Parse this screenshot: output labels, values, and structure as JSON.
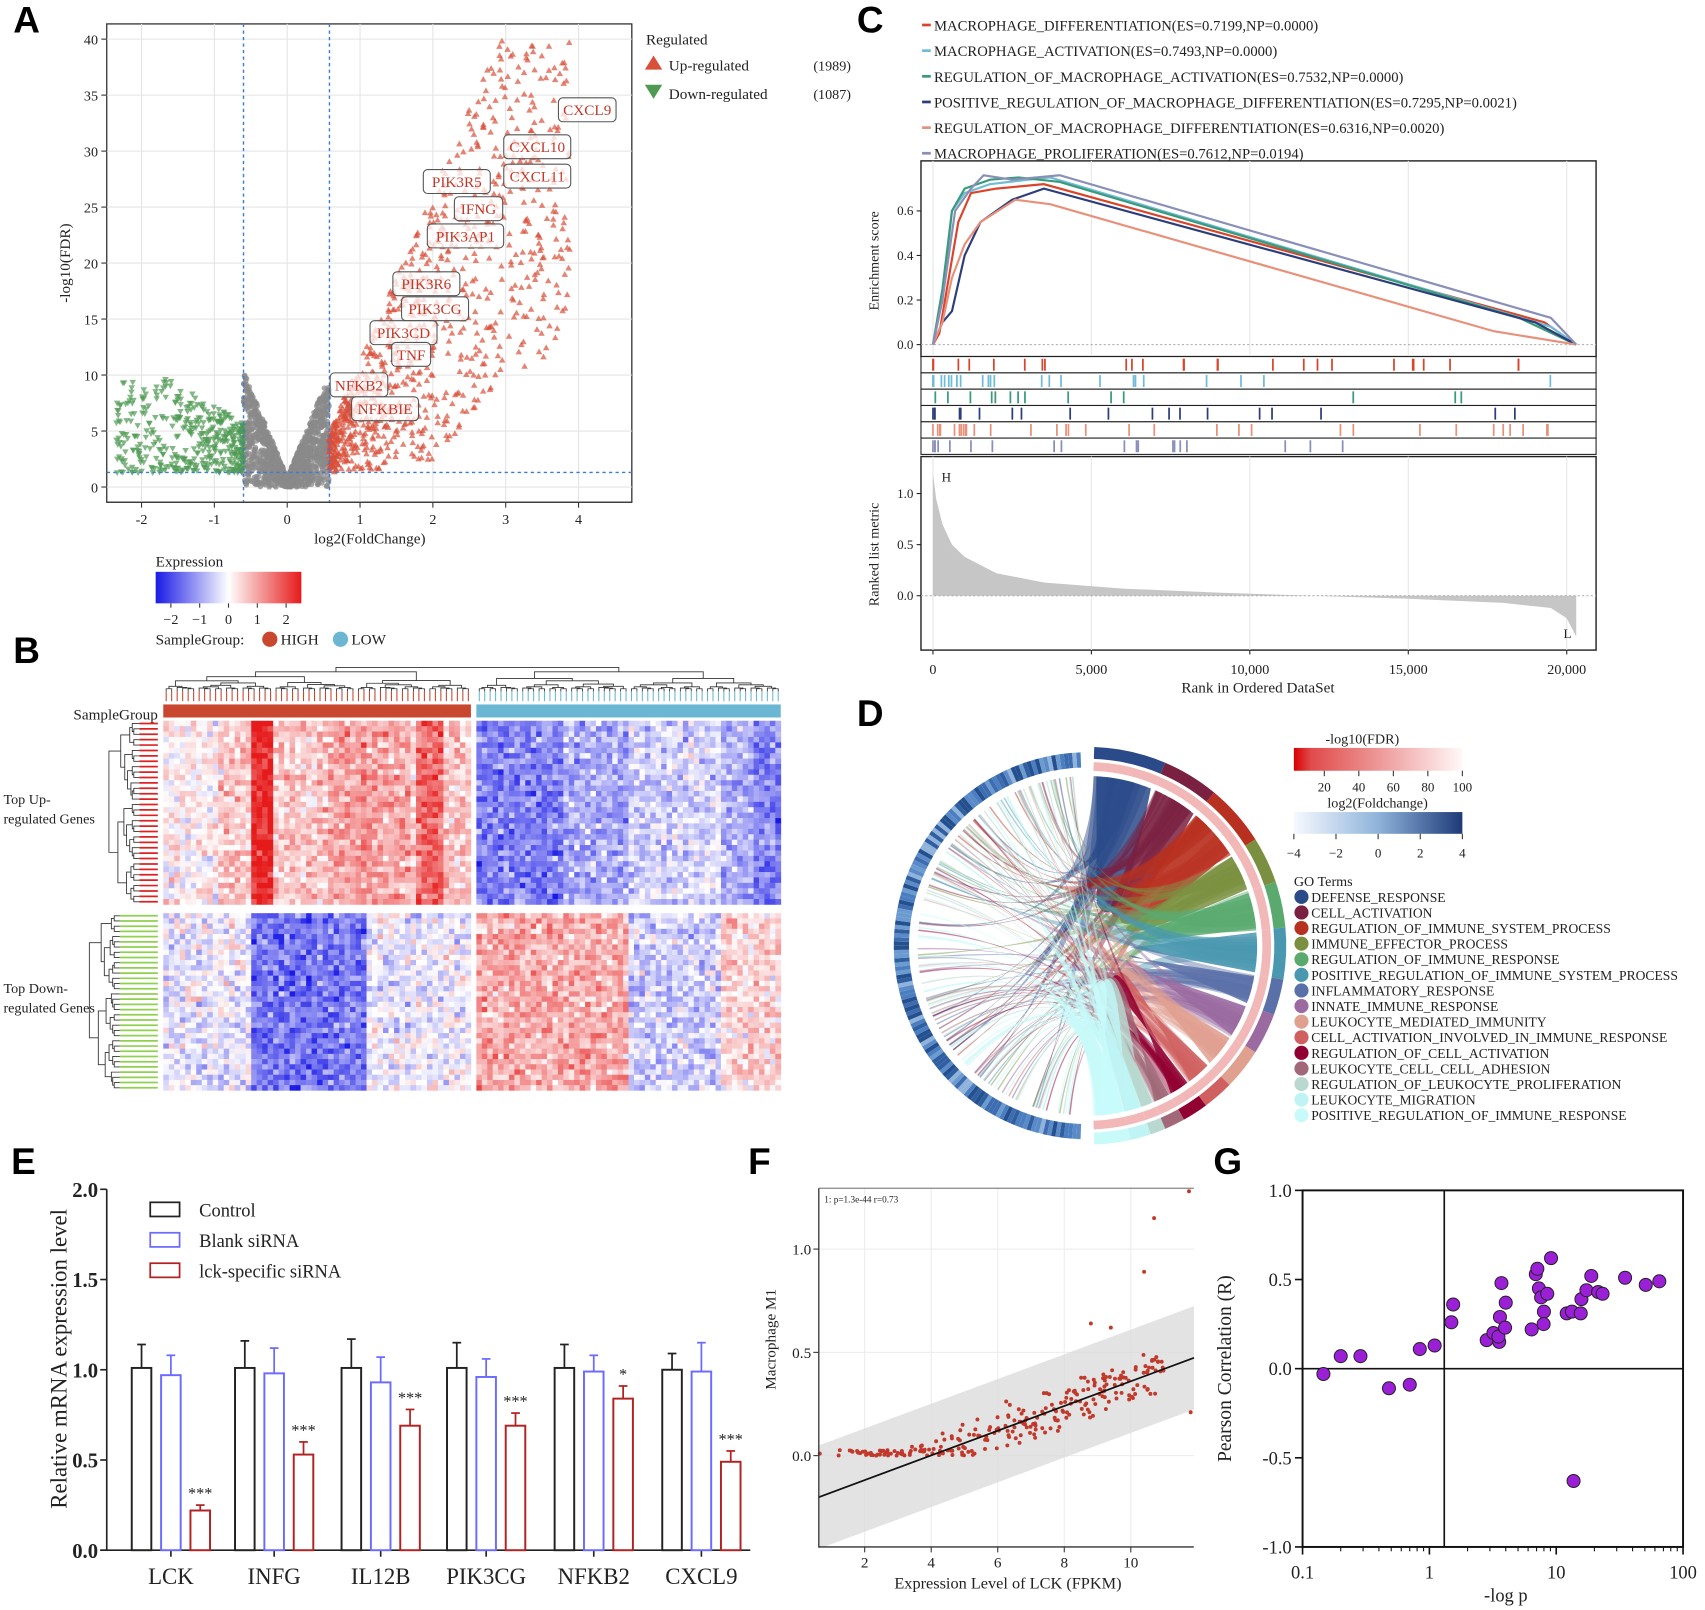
{
  "panel_labels": {
    "A": "A",
    "B": "B",
    "C": "C",
    "D": "D",
    "E": "E",
    "F": "F",
    "G": "G"
  },
  "chart_data": [
    {
      "panel": "A",
      "type": "scatter",
      "title": "",
      "xlabel": "log2(FoldChange)",
      "ylabel": "-log10(FDR)",
      "xticks": [
        "-2",
        "-1",
        "0",
        "1",
        "2",
        "3",
        "4"
      ],
      "yticks": [
        "0",
        "5",
        "10",
        "15",
        "20",
        "25",
        "30",
        "35",
        "40"
      ],
      "xlim": [
        -2.5,
        4.7
      ],
      "ylim": [
        -1,
        41
      ],
      "thresholds": {
        "log2fc": [
          -0.6,
          0.58
        ],
        "neg_log10_fdr": 1.3
      },
      "legend": {
        "title": "Regulated",
        "items": [
          {
            "label": "Up-regulated",
            "count": "(1989)",
            "color": "#d9503a"
          },
          {
            "label": "Down-regulated",
            "count": "(1087)",
            "color": "#4f9a52"
          }
        ]
      },
      "gene_labels": [
        "CXCL9",
        "CXCL10",
        "CXCL11",
        "PIK3R5",
        "IFNG",
        "PIK3AP1",
        "PIK3R6",
        "PIK3CG",
        "PIK3CD",
        "TNF",
        "NFKB2",
        "NFKBIE"
      ]
    },
    {
      "panel": "B",
      "type": "heatmap",
      "legend_title": "Expression",
      "color_range": [
        -2,
        2
      ],
      "color_ticks": [
        "−2",
        "−1",
        "0",
        "1",
        "2"
      ],
      "sample_group_legend": "SampleGroup:",
      "annotation_label": "SampleGroup",
      "groups": [
        {
          "label": "HIGH",
          "color": "#c9462f"
        },
        {
          "label": "LOW",
          "color": "#6bb7d3"
        }
      ],
      "row_groups": [
        {
          "line1": "Top Up-",
          "line2": "regulated Genes",
          "color": "#e02020"
        },
        {
          "line1": "Top Down-",
          "line2": "regulated Genes",
          "color": "#8fd14f"
        }
      ],
      "colors": {
        "low": "#1a1ae6",
        "mid": "#ffffff",
        "high": "#e61a1a"
      }
    },
    {
      "panel": "C",
      "type": "line",
      "xlabel": "Rank in Ordered DataSet",
      "ylabel_es": "Enrichment score",
      "ylabel_metric": "Ranked list metric",
      "xticks": [
        {
          "v": 0,
          "label": "0"
        },
        {
          "v": 5000,
          "label": "5,000"
        },
        {
          "v": 10000,
          "label": "10,000"
        },
        {
          "v": 15000,
          "label": "15,000"
        },
        {
          "v": 20000,
          "label": "20,000"
        }
      ],
      "es_ticks": [
        {
          "v": 0,
          "label": "0.0"
        },
        {
          "v": 0.2,
          "label": "0.2"
        },
        {
          "v": 0.4,
          "label": "0.4"
        },
        {
          "v": 0.6,
          "label": "0.6"
        }
      ],
      "metric_ticks": [
        {
          "v": 0,
          "label": "0.0"
        },
        {
          "v": 0.5,
          "label": "0.5"
        },
        {
          "v": 1.0,
          "label": "1.0"
        }
      ],
      "high_label": "H",
      "low_label": "L",
      "series": [
        {
          "label": "MACROPHAGE_DIFFERENTIATION(ES=0.7199,NP=0.0000)",
          "color": "#d9442b",
          "points": [
            [
              0,
              0
            ],
            [
              200,
              0.05
            ],
            [
              500,
              0.3
            ],
            [
              800,
              0.55
            ],
            [
              1200,
              0.68
            ],
            [
              2000,
              0.7
            ],
            [
              3500,
              0.72
            ],
            [
              19300,
              0.1
            ],
            [
              20300,
              0
            ]
          ]
        },
        {
          "label": "MACROPHAGE_ACTIVATION(ES=0.7493,NP=0.0000)",
          "color": "#6fbcd8",
          "points": [
            [
              0,
              0
            ],
            [
              300,
              0.2
            ],
            [
              600,
              0.6
            ],
            [
              1000,
              0.68
            ],
            [
              1800,
              0.72
            ],
            [
              3000,
              0.74
            ],
            [
              3700,
              0.75
            ],
            [
              19500,
              0.08
            ],
            [
              20300,
              0
            ]
          ]
        },
        {
          "label": "REGULATION_OF_MACROPHAGE_ACTIVATION(ES=0.7532,NP=0.0000)",
          "color": "#3a9a7a",
          "points": [
            [
              0,
              0
            ],
            [
              300,
              0.25
            ],
            [
              600,
              0.6
            ],
            [
              1000,
              0.7
            ],
            [
              1800,
              0.74
            ],
            [
              2700,
              0.75
            ],
            [
              4000,
              0.73
            ],
            [
              18500,
              0.12
            ],
            [
              20300,
              0
            ]
          ]
        },
        {
          "label": "POSITIVE_REGULATION_OF_MACROPHAGE_DIFFERENTIATION(ES=0.7295,NP=0.0021)",
          "color": "#2c3e7a",
          "points": [
            [
              0,
              0
            ],
            [
              300,
              0.1
            ],
            [
              600,
              0.15
            ],
            [
              1000,
              0.4
            ],
            [
              1500,
              0.55
            ],
            [
              2500,
              0.65
            ],
            [
              3500,
              0.7
            ],
            [
              19000,
              0.1
            ],
            [
              20300,
              0
            ]
          ]
        },
        {
          "label": "REGULATION_OF_MACROPHAGE_DIFFERENTIATION(ES=0.6316,NP=0.0020)",
          "color": "#e8907a",
          "points": [
            [
              0,
              0
            ],
            [
              300,
              0.1
            ],
            [
              600,
              0.3
            ],
            [
              1000,
              0.45
            ],
            [
              1500,
              0.55
            ],
            [
              2600,
              0.65
            ],
            [
              3700,
              0.63
            ],
            [
              17700,
              0.06
            ],
            [
              20300,
              0
            ]
          ]
        },
        {
          "label": "MACROPHAGE_PROLIFERATION(ES=0.7612,NP=0.0194)",
          "color": "#8a8fb8",
          "points": [
            [
              0,
              0
            ],
            [
              300,
              0.2
            ],
            [
              700,
              0.6
            ],
            [
              1200,
              0.7
            ],
            [
              1600,
              0.76
            ],
            [
              2500,
              0.74
            ],
            [
              4000,
              0.76
            ],
            [
              19500,
              0.12
            ],
            [
              20300,
              0
            ]
          ]
        }
      ],
      "metric": [
        [
          0,
          1.2
        ],
        [
          100,
          0.95
        ],
        [
          300,
          0.7
        ],
        [
          600,
          0.5
        ],
        [
          1000,
          0.38
        ],
        [
          2000,
          0.22
        ],
        [
          3500,
          0.13
        ],
        [
          6000,
          0.07
        ],
        [
          9000,
          0.03
        ],
        [
          12000,
          0.0
        ],
        [
          15000,
          -0.03
        ],
        [
          18000,
          -0.07
        ],
        [
          19500,
          -0.12
        ],
        [
          20000,
          -0.22
        ],
        [
          20300,
          -0.4
        ]
      ],
      "xlim": [
        0,
        20900
      ]
    },
    {
      "panel": "D",
      "type": "chord",
      "fdr_legend": {
        "title": "-log10(FDR)",
        "ticks": [
          "20",
          "40",
          "60",
          "80",
          "100"
        ]
      },
      "fc_legend": {
        "title": "log2(Foldchange)",
        "ticks": [
          "−4",
          "−2",
          "0",
          "2",
          "4"
        ]
      },
      "terms_title": "GO Terms",
      "go_terms": [
        {
          "label": "DEFENSE_RESPONSE",
          "color": "#2a4a8a",
          "weight": 14
        },
        {
          "label": "CELL_ACTIVATION",
          "color": "#7a2040",
          "weight": 11
        },
        {
          "label": "REGULATION_OF_IMMUNE_SYSTEM_PROCESS",
          "color": "#b83020",
          "weight": 12
        },
        {
          "label": "IMMUNE_EFFECTOR_PROCESS",
          "color": "#7a9040",
          "weight": 9
        },
        {
          "label": "REGULATION_OF_IMMUNE_RESPONSE",
          "color": "#5aaa70",
          "weight": 9
        },
        {
          "label": "POSITIVE_REGULATION_OF_IMMUNE_SYSTEM_PROCESS",
          "color": "#4a98b0",
          "weight": 10
        },
        {
          "label": "INFLAMMATORY_RESPONSE",
          "color": "#5a70a8",
          "weight": 7
        },
        {
          "label": "INNATE_IMMUNE_RESPONSE",
          "color": "#9a6aa0",
          "weight": 8
        },
        {
          "label": "LEUKOCYTE_MEDIATED_IMMUNITY",
          "color": "#e0a090",
          "weight": 8
        },
        {
          "label": "CELL_ACTIVATION_INVOLVED_IN_IMMUNE_RESPONSE",
          "color": "#d06060",
          "weight": 6
        },
        {
          "label": "REGULATION_OF_CELL_ACTIVATION",
          "color": "#900030",
          "weight": 5
        },
        {
          "label": "LEUKOCYTE_CELL_CELL_ADHESION",
          "color": "#a06878",
          "weight": 4
        },
        {
          "label": "REGULATION_OF_LEUKOCYTE_PROLIFERATION",
          "color": "#b8d8d0",
          "weight": 3
        },
        {
          "label": "LEUKOCYTE_MIGRATION",
          "color": "#c0f4f4",
          "weight": 4
        },
        {
          "label": "POSITIVE_REGULATION_OF_IMMUNE_RESPONSE",
          "color": "#c8fafa",
          "weight": 7
        }
      ]
    },
    {
      "panel": "E",
      "type": "bar",
      "ylabel": "Relative mRNA expression level",
      "yticks": [
        "0.0",
        "0.5",
        "1.0",
        "1.5",
        "2.0"
      ],
      "ylim": [
        0,
        2.0
      ],
      "categories": [
        "LCK",
        "INFG",
        "IL12B",
        "PIK3CG",
        "NFKB2",
        "CXCL9"
      ],
      "series": [
        {
          "name": "Control",
          "color": "#222222",
          "values": [
            1.01,
            1.01,
            1.01,
            1.01,
            1.01,
            1.0
          ],
          "errors": [
            0.13,
            0.15,
            0.16,
            0.14,
            0.13,
            0.09
          ]
        },
        {
          "name": "Blank siRNA",
          "color": "#6b6bff",
          "values": [
            0.97,
            0.98,
            0.93,
            0.96,
            0.99,
            0.99
          ],
          "errors": [
            0.11,
            0.14,
            0.14,
            0.1,
            0.09,
            0.16
          ]
        },
        {
          "name": "lck-specific siRNA",
          "color": "#b22222",
          "values": [
            0.22,
            0.53,
            0.69,
            0.69,
            0.84,
            0.49
          ],
          "errors": [
            0.03,
            0.07,
            0.09,
            0.07,
            0.07,
            0.06
          ]
        }
      ],
      "significance": [
        "***",
        "***",
        "***",
        "***",
        "*",
        "***"
      ]
    },
    {
      "panel": "F",
      "type": "scatter",
      "annotation": "1: p=1.3e-44 r=0.73",
      "xlabel": "Expression Level of LCK (FPKM)",
      "ylabel": "Macrophage M1",
      "xticks": [
        "2",
        "4",
        "6",
        "8",
        "10"
      ],
      "yticks": [
        "0.0",
        "0.5",
        "1.0"
      ],
      "xlim": [
        0.62,
        11.9
      ],
      "ylim": [
        -0.44,
        1.29
      ],
      "regression": {
        "slope": 0.0598,
        "intercept": -0.238,
        "band": 0.25
      },
      "point_color": "#c0392b"
    },
    {
      "panel": "G",
      "type": "scatter",
      "xlabel": "-log p",
      "ylabel": "Pearson Correlation (R)",
      "xscale": "log",
      "xlim": [
        0.1,
        100
      ],
      "ylim": [
        -1.0,
        1.0
      ],
      "xticks": [
        "0.1",
        "1",
        "10",
        "100"
      ],
      "yticks": [
        "-1.0",
        "-0.5",
        "0.0",
        "0.5",
        "1.0"
      ],
      "reference_lines": {
        "x": 1.31,
        "y": 0
      },
      "point_color": "#9b1fd6",
      "points": [
        [
          0.146,
          -0.03
        ],
        [
          0.2,
          0.07
        ],
        [
          0.286,
          0.07
        ],
        [
          0.48,
          -0.11
        ],
        [
          0.7,
          -0.09
        ],
        [
          0.84,
          0.11
        ],
        [
          1.1,
          0.13
        ],
        [
          1.49,
          0.26
        ],
        [
          1.54,
          0.36
        ],
        [
          2.83,
          0.16
        ],
        [
          3.2,
          0.2
        ],
        [
          3.55,
          0.15
        ],
        [
          3.5,
          0.18
        ],
        [
          3.6,
          0.29
        ],
        [
          3.7,
          0.48
        ],
        [
          4.0,
          0.37
        ],
        [
          3.95,
          0.23
        ],
        [
          6.4,
          0.22
        ],
        [
          6.9,
          0.53
        ],
        [
          7.1,
          0.56
        ],
        [
          7.3,
          0.45
        ],
        [
          7.6,
          0.4
        ],
        [
          8.0,
          0.32
        ],
        [
          7.95,
          0.25
        ],
        [
          8.5,
          0.42
        ],
        [
          9.1,
          0.62
        ],
        [
          12.1,
          0.31
        ],
        [
          13.3,
          0.32
        ],
        [
          13.7,
          -0.63
        ],
        [
          15.6,
          0.31
        ],
        [
          15.8,
          0.39
        ],
        [
          17.3,
          0.44
        ],
        [
          18.9,
          0.52
        ],
        [
          21.4,
          0.43
        ],
        [
          23.2,
          0.42
        ],
        [
          34.9,
          0.51
        ],
        [
          50.8,
          0.47
        ],
        [
          65.0,
          0.49
        ]
      ]
    }
  ]
}
